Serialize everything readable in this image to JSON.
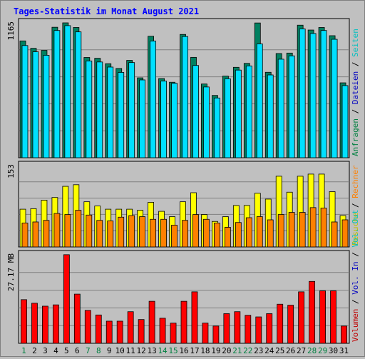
{
  "chart_data": {
    "type": "bar",
    "title": "Tages-Statistik im Monat August 2021",
    "categories": [
      "1",
      "2",
      "3",
      "4",
      "5",
      "6",
      "7",
      "8",
      "9",
      "10",
      "11",
      "12",
      "13",
      "14",
      "15",
      "16",
      "17",
      "18",
      "19",
      "20",
      "21",
      "22",
      "23",
      "24",
      "25",
      "26",
      "27",
      "28",
      "29",
      "30",
      "31"
    ],
    "weekend_days": [
      "1",
      "7",
      "8",
      "14",
      "15",
      "21",
      "22",
      "28",
      "29"
    ],
    "panels": [
      {
        "id": "requests",
        "max_label": "1165",
        "ymax": 1165,
        "right_labels": [
          {
            "text": "Anfragen",
            "color": "#008040"
          },
          {
            "text": " / ",
            "color": "#000000"
          },
          {
            "text": "Dateien",
            "color": "#0000c0"
          },
          {
            "text": " / ",
            "color": "#000000"
          },
          {
            "text": "Seiten",
            "color": "#00c0c0"
          }
        ],
        "series": [
          {
            "name": "Anfragen",
            "color": "#008060",
            "values": [
              1009,
              945,
              927,
              1127,
              1165,
              1125,
              866,
              859,
              812,
              771,
              841,
              690,
              1049,
              684,
              652,
              1065,
              867,
              637,
              538,
              705,
              781,
              815,
              1164,
              738,
              900,
              904,
              1145,
              1103,
              1125,
              1054,
              647
            ]
          },
          {
            "name": "Dateien",
            "color": "#00e0ff",
            "values": [
              969,
              915,
              885,
              1099,
              1141,
              1087,
              836,
              827,
              783,
              737,
              822,
              672,
              1008,
              662,
              643,
              1047,
              797,
              611,
              516,
              682,
              757,
              793,
              983,
              715,
              851,
              880,
              1113,
              1073,
              1099,
              1023,
              623
            ]
          }
        ]
      },
      {
        "id": "visits",
        "max_label": "153",
        "ymax": 153,
        "right_labels": [
          {
            "text": "Besuche",
            "color": "#c0c000"
          },
          {
            "text": " / ",
            "color": "#000000"
          },
          {
            "text": "Rechner",
            "color": "#ff8000"
          }
        ],
        "series": [
          {
            "name": "Besuche",
            "color": "#ffff00",
            "values": [
              71,
              72,
              88,
              93,
              114,
              117,
              85,
              77,
              71,
              71,
              71,
              69,
              84,
              67,
              57,
              85,
              102,
              61,
              48,
              57,
              78,
              78,
              101,
              90,
              133,
              103,
              133,
              137,
              137,
              104,
              59
            ]
          },
          {
            "name": "Rechner",
            "color": "#ff8000",
            "values": [
              45,
              47,
              50,
              63,
              61,
              69,
              60,
              50,
              49,
              56,
              59,
              57,
              52,
              52,
              41,
              50,
              61,
              52,
              45,
              37,
              46,
              55,
              57,
              51,
              61,
              65,
              65,
              74,
              73,
              47,
              51
            ]
          }
        ]
      },
      {
        "id": "volume",
        "max_label": "27.17 MB",
        "ymax": 27.17,
        "right_labels": [
          {
            "text": "Volumen",
            "color": "#c00000"
          },
          {
            "text": " / ",
            "color": "#000000"
          },
          {
            "text": "Vol. In",
            "color": "#0000c0"
          },
          {
            "text": " / ",
            "color": "#000000"
          },
          {
            "text": "Vol. Out",
            "color": "#00c0c0"
          }
        ],
        "series": [
          {
            "name": "Volumen",
            "color": "#ff0000",
            "values": [
              13.4,
              12.3,
              11.4,
              11.8,
              27.2,
              15.1,
              10.1,
              8.7,
              6.8,
              6.8,
              9.7,
              7.3,
              12.9,
              7.7,
              6.2,
              12.9,
              15.8,
              6.2,
              5.3,
              9.1,
              9.7,
              8.6,
              8.1,
              9.1,
              12.0,
              11.7,
              15.8,
              19.0,
              16.1,
              16.1,
              5.3
            ]
          }
        ]
      }
    ],
    "colors": {
      "title": "#0000ff",
      "weekday_label": "#000000",
      "weekend_label": "#008040",
      "plot_bg": "#c0c0c0",
      "grid": "#808080"
    }
  }
}
